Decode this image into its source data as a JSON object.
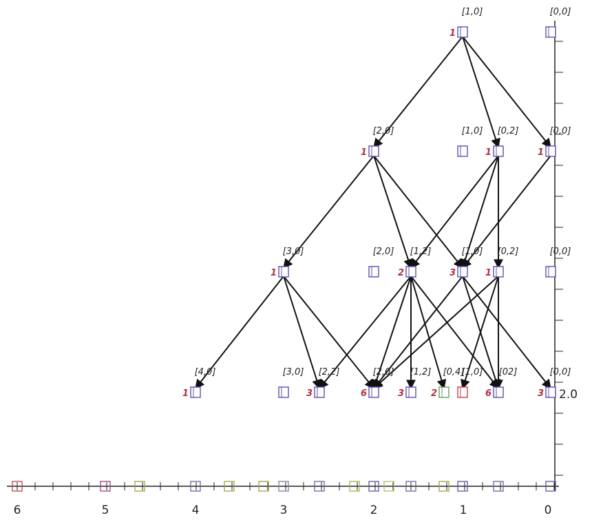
{
  "nodes": [
    {
      "label": "[1,0]",
      "count": 1
    },
    {
      "label": "[0,0]"
    },
    {
      "label": "[2,0]",
      "count": 1
    },
    {
      "label": "[1,0]"
    },
    {
      "label": "[0,2]",
      "count": 1
    },
    {
      "label": "[0,0]",
      "count": 1
    },
    {
      "label": "[3,0]",
      "count": 1
    },
    {
      "label": "[2,0]"
    },
    {
      "label": "[1,2]",
      "count": 2
    },
    {
      "label": "[1,0]",
      "count": 3
    },
    {
      "label": "[0,2]",
      "count": 1
    },
    {
      "label": "[0,0]"
    },
    {
      "label": "[4,0]",
      "count": 1
    },
    {
      "label": "[3,0]"
    },
    {
      "label": "[2,2]",
      "count": 3
    },
    {
      "label": "[2,0]",
      "count": 6
    },
    {
      "label": "[1,2]",
      "count": 3
    },
    {
      "label": "[0,4]",
      "count": 2
    },
    {
      "label": "[1,0]"
    },
    {
      "label": "[02]",
      "count": 6
    },
    {
      "label": "[0,0]",
      "count": 3
    }
  ],
  "x_axis_labels": [
    6,
    5,
    4,
    3,
    2,
    1,
    0
  ],
  "y_axis_label": "2.0"
}
